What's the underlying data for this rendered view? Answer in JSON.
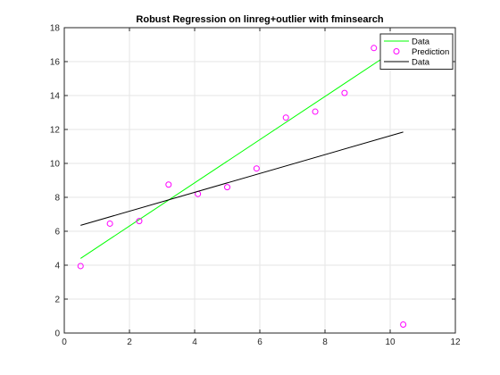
{
  "chart_data": {
    "type": "scatter",
    "title": "Robust Regression on linreg+outlier with fminsearch",
    "xlabel": "",
    "ylabel": "",
    "xlim": [
      0,
      12
    ],
    "ylim": [
      0,
      18
    ],
    "xticks": [
      0,
      2,
      4,
      6,
      8,
      10,
      12
    ],
    "yticks": [
      0,
      2,
      4,
      6,
      8,
      10,
      12,
      14,
      16,
      18
    ],
    "grid": true,
    "legend_position": "top-right",
    "series": [
      {
        "name": "Data",
        "kind": "line",
        "color": "#00ff00",
        "x": [
          0.5,
          10.4
        ],
        "y": [
          4.4,
          17.0
        ]
      },
      {
        "name": "Prediction",
        "kind": "markers",
        "marker": "circle-open",
        "color": "#ff00ff",
        "x": [
          0.5,
          1.4,
          2.3,
          3.2,
          4.1,
          5.0,
          5.9,
          6.8,
          7.7,
          8.6,
          9.5,
          10.4
        ],
        "y": [
          3.95,
          6.45,
          6.6,
          8.75,
          8.2,
          8.6,
          9.7,
          12.7,
          13.05,
          14.15,
          16.8,
          0.5
        ]
      },
      {
        "name": "Data",
        "kind": "line",
        "color": "#000000",
        "x": [
          0.5,
          10.4
        ],
        "y": [
          6.35,
          11.85
        ]
      }
    ]
  }
}
